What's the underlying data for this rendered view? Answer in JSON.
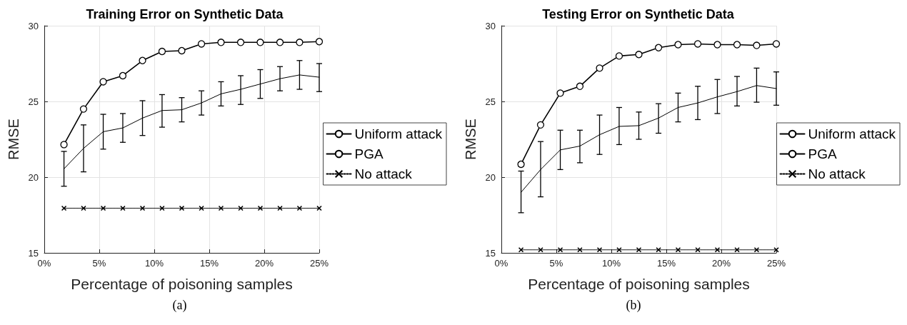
{
  "chart_data": [
    {
      "type": "line",
      "title": "Training Error on Synthetic Data",
      "xlabel": "Percentage of poisoning samples",
      "ylabel": "RMSE",
      "annotations": [
        "(a)"
      ],
      "x": [
        1.79,
        3.57,
        5.36,
        7.14,
        8.93,
        10.71,
        12.5,
        14.29,
        16.07,
        17.86,
        19.64,
        21.43,
        23.21,
        25
      ],
      "xlim": [
        0,
        25
      ],
      "xticks": [
        {
          "value": 0,
          "label": "0%"
        },
        {
          "value": 5,
          "label": "5%"
        },
        {
          "value": 10,
          "label": "10%"
        },
        {
          "value": 15,
          "label": "15%"
        },
        {
          "value": 20,
          "label": "20%"
        },
        {
          "value": 25,
          "label": "25%"
        }
      ],
      "ylim": [
        15,
        30
      ],
      "yticks": [
        15,
        20,
        25,
        30
      ],
      "grid": true,
      "legend": "right",
      "series": [
        {
          "name": "Uniform attack",
          "color": "#000000",
          "marker": "none",
          "line_style": "solid",
          "values": [
            20.55,
            21.9,
            23.0,
            23.25,
            23.9,
            24.4,
            24.45,
            24.9,
            25.5,
            25.8,
            26.15,
            26.5,
            26.75,
            26.6
          ],
          "errors": [
            [
              19.4,
              21.7
            ],
            [
              20.35,
              23.45
            ],
            [
              21.85,
              24.15
            ],
            [
              22.3,
              24.2
            ],
            [
              22.75,
              25.05
            ],
            [
              23.3,
              25.45
            ],
            [
              23.65,
              25.25
            ],
            [
              24.1,
              25.7
            ],
            [
              24.7,
              26.3
            ],
            [
              24.8,
              26.7
            ],
            [
              25.2,
              27.1
            ],
            [
              25.7,
              27.3
            ],
            [
              25.8,
              27.7
            ],
            [
              25.65,
              27.5
            ]
          ]
        },
        {
          "name": "PGA",
          "color": "#000000",
          "marker": "circle",
          "line_style": "solid",
          "values": [
            22.15,
            24.5,
            26.3,
            26.7,
            27.7,
            28.3,
            28.35,
            28.8,
            28.9,
            28.9,
            28.9,
            28.9,
            28.9,
            28.95
          ]
        },
        {
          "name": "No attack",
          "color": "#000000",
          "marker": "cross",
          "line_style": "dotted",
          "values": [
            17.95,
            17.95,
            17.95,
            17.95,
            17.95,
            17.95,
            17.95,
            17.95,
            17.95,
            17.95,
            17.95,
            17.95,
            17.95,
            17.95
          ]
        }
      ]
    },
    {
      "type": "line",
      "title": "Testing Error on Synthetic Data",
      "xlabel": "Percentage of poisoning samples",
      "ylabel": "RMSE",
      "annotations": [
        "(b)"
      ],
      "x": [
        1.79,
        3.57,
        5.36,
        7.14,
        8.93,
        10.71,
        12.5,
        14.29,
        16.07,
        17.86,
        19.64,
        21.43,
        23.21,
        25
      ],
      "xlim": [
        0,
        25
      ],
      "xticks": [
        {
          "value": 0,
          "label": "0%"
        },
        {
          "value": 5,
          "label": "5%"
        },
        {
          "value": 10,
          "label": "10%"
        },
        {
          "value": 15,
          "label": "15%"
        },
        {
          "value": 20,
          "label": "20%"
        },
        {
          "value": 25,
          "label": "25%"
        }
      ],
      "ylim": [
        15,
        30
      ],
      "yticks": [
        15,
        20,
        25,
        30
      ],
      "grid": true,
      "legend": "right",
      "series": [
        {
          "name": "Uniform attack",
          "color": "#000000",
          "marker": "none",
          "line_style": "solid",
          "values": [
            19.0,
            20.5,
            21.8,
            22.05,
            22.8,
            23.35,
            23.4,
            23.9,
            24.6,
            24.9,
            25.3,
            25.65,
            26.05,
            25.85
          ],
          "errors": [
            [
              17.65,
              20.4
            ],
            [
              18.7,
              22.35
            ],
            [
              20.5,
              23.1
            ],
            [
              20.95,
              23.1
            ],
            [
              21.5,
              24.1
            ],
            [
              22.15,
              24.6
            ],
            [
              22.5,
              24.3
            ],
            [
              22.9,
              24.85
            ],
            [
              23.65,
              25.55
            ],
            [
              23.8,
              26.0
            ],
            [
              24.2,
              26.45
            ],
            [
              24.7,
              26.65
            ],
            [
              24.95,
              27.2
            ],
            [
              24.75,
              26.95
            ]
          ]
        },
        {
          "name": "PGA",
          "color": "#000000",
          "marker": "circle",
          "line_style": "solid",
          "values": [
            20.85,
            23.45,
            25.55,
            26.0,
            27.2,
            28.0,
            28.1,
            28.55,
            28.75,
            28.8,
            28.75,
            28.75,
            28.7,
            28.8
          ]
        },
        {
          "name": "No attack",
          "color": "#000000",
          "marker": "cross",
          "line_style": "dotted",
          "values": [
            15.2,
            15.2,
            15.2,
            15.2,
            15.2,
            15.2,
            15.2,
            15.2,
            15.2,
            15.2,
            15.2,
            15.2,
            15.2,
            15.2
          ]
        }
      ]
    }
  ]
}
